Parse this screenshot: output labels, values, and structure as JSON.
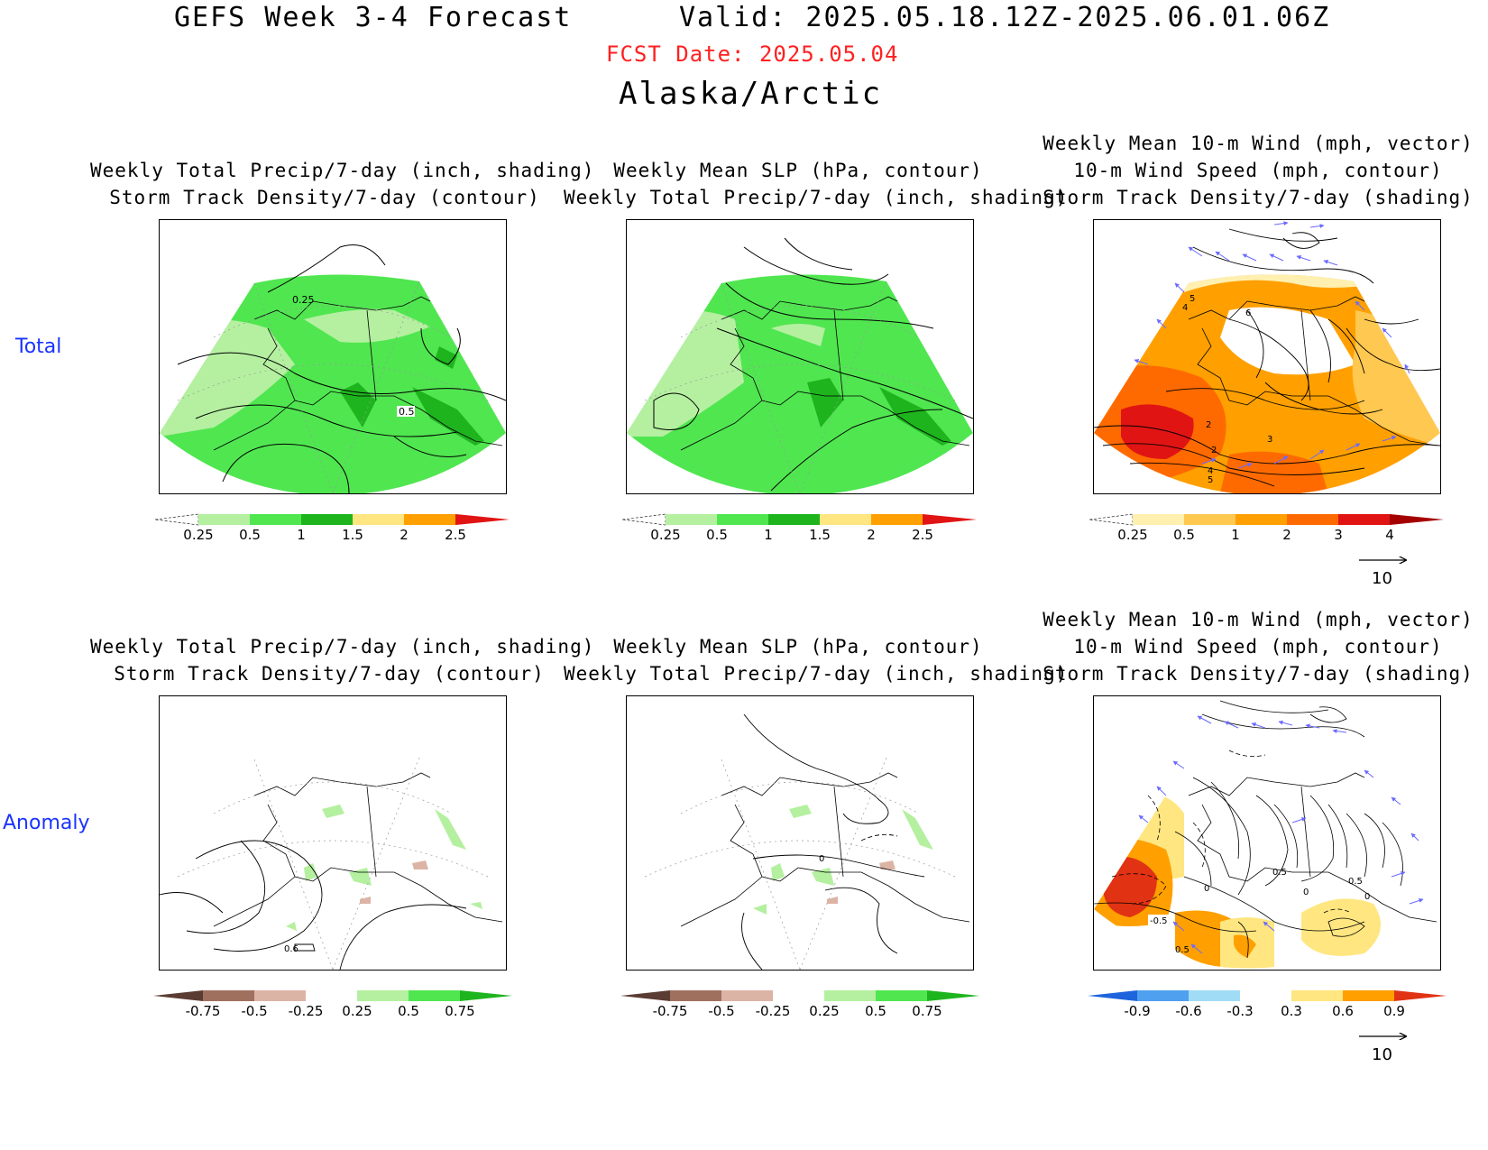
{
  "header": {
    "title": "GEFS Week 3-4 Forecast",
    "valid": "Valid: 2025.05.18.12Z-2025.06.01.06Z",
    "fcst_date": "FCST Date: 2025.05.04",
    "region": "Alaska/Arctic"
  },
  "rows": {
    "total": "Total",
    "anomaly": "Anomaly"
  },
  "panel_titles": {
    "precip_storm": [
      "Weekly Total Precip/7-day (inch, shading)",
      "Storm Track Density/7-day (contour)"
    ],
    "slp_precip": [
      "Weekly Mean SLP (hPa, contour)",
      "Weekly Total Precip/7-day (inch, shading)"
    ],
    "wind_storm": [
      "Weekly Mean 10-m Wind (mph, vector)",
      "10-m Wind Speed (mph, contour)",
      "Storm Track Density/7-day (shading)"
    ]
  },
  "contour_labels": {
    "total_precip": [
      "0.25",
      "0.5"
    ],
    "total_wind": [
      "5",
      "4",
      "6",
      "2",
      "2",
      "3",
      "4",
      "5"
    ],
    "anom_precip": [
      "0.6"
    ],
    "anom_slp": [
      "0"
    ],
    "anom_wind": [
      "-0.5",
      "0.5",
      "0",
      "0.5",
      "0",
      "0",
      "0.5"
    ]
  },
  "colorbars": {
    "precip_total": {
      "ticks": [
        "0.25",
        "0.5",
        "1",
        "1.5",
        "2",
        "2.5"
      ],
      "colors": [
        "#b4f0a0",
        "#50e650",
        "#1eb41e",
        "#ffe680",
        "#ffa000",
        "#e11414"
      ]
    },
    "storm_total": {
      "ticks": [
        "0.25",
        "0.5",
        "1",
        "2",
        "3",
        "4"
      ],
      "colors": [
        "#fff0b0",
        "#ffc850",
        "#ffa000",
        "#ff6a00",
        "#e11414",
        "#a50000"
      ]
    },
    "precip_anom": {
      "ticks": [
        "-0.75",
        "-0.5",
        "-0.25",
        "0.25",
        "0.5",
        "0.75"
      ],
      "neg_colors": [
        "#5a3c32",
        "#a0705f",
        "#dcb4a5"
      ],
      "pos_colors": [
        "#b4f0a0",
        "#50e650",
        "#1eb41e"
      ]
    },
    "storm_anom": {
      "ticks": [
        "-0.9",
        "-0.6",
        "-0.3",
        "0.3",
        "0.6",
        "0.9"
      ],
      "neg_colors": [
        "#1e64dc",
        "#50a0f0",
        "#a0dcf5"
      ],
      "pos_colors": [
        "#ffe680",
        "#ffa000",
        "#e13214"
      ]
    }
  },
  "reference_vector": "10",
  "colors": {
    "fcst_date": "#ff2020",
    "row_label": "#1a33ff",
    "vector": "#6a6aff"
  }
}
